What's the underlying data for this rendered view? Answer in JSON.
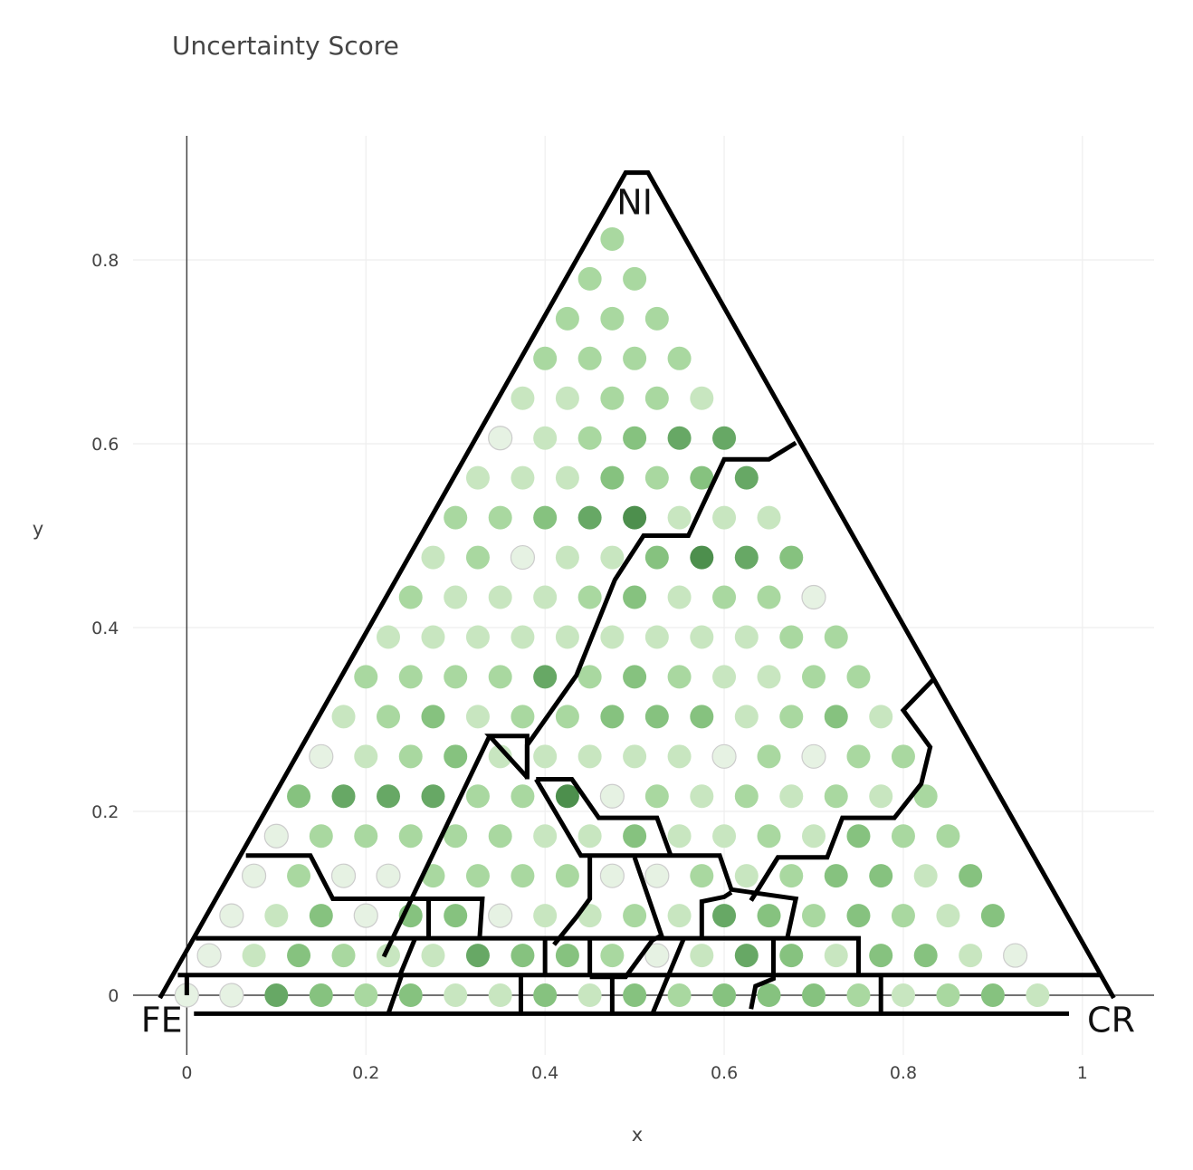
{
  "chart_data": {
    "type": "scatter",
    "title": "Uncertainty Score",
    "xlabel": "x",
    "ylabel": "y",
    "xlim": [
      -0.06,
      1.08
    ],
    "ylim": [
      -0.065,
      0.935
    ],
    "x_ticks": [
      0,
      0.2,
      0.4,
      0.6,
      0.8,
      1
    ],
    "x_tick_labels": [
      "0",
      "0.2",
      "0.4",
      "0.6",
      "0.8",
      "1"
    ],
    "y_ticks": [
      0,
      0.2,
      0.4,
      0.6,
      0.8
    ],
    "y_tick_labels": [
      "0",
      "0.2",
      "0.4",
      "0.6",
      "0.8"
    ],
    "grid": true,
    "vertices": [
      {
        "label": "NI",
        "x": 0.5,
        "y": 0.866
      },
      {
        "label": "FE",
        "x": 0,
        "y": 0
      },
      {
        "label": "CR",
        "x": 1,
        "y": 0
      }
    ],
    "rows": 20,
    "color_scale": [
      "#ffffff",
      "#e6f2e3",
      "#c8e6c0",
      "#a9d8a0",
      "#86c27f",
      "#67a865",
      "#4d8f4d"
    ],
    "scores": [
      "11543422424344432342",
      "1243225443125424421",
      "124144122325434324",
      "13113333113234424",
      "1333332242232433",
      "455533613232323",
      "12342222213133",
      "2342334442342",
      "333353432233",
      "22222222233",
      "3222342331",
      "231224654",
      "33456222",
      "2224345",
      "123455",
      "22332",
      "3333",
      "333",
      "33",
      "3"
    ],
    "boundaries": [
      [
        [
          0.68,
          0.601
        ],
        [
          0.65,
          0.583
        ],
        [
          0.6,
          0.583
        ],
        [
          0.56,
          0.5
        ],
        [
          0.51,
          0.5
        ],
        [
          0.478,
          0.452
        ],
        [
          0.435,
          0.348
        ],
        [
          0.38,
          0.272
        ],
        [
          0.38,
          0.235
        ]
      ],
      [
        [
          0.38,
          0.237
        ],
        [
          0.338,
          0.282
        ],
        [
          0.38,
          0.282
        ],
        [
          0.38,
          0.237
        ]
      ],
      [
        [
          0.338,
          0.282
        ],
        [
          0.22,
          0.042
        ]
      ],
      [
        [
          0.39,
          0.235
        ],
        [
          0.43,
          0.235
        ],
        [
          0.46,
          0.193
        ],
        [
          0.525,
          0.193
        ],
        [
          0.54,
          0.153
        ]
      ],
      [
        [
          0.39,
          0.235
        ],
        [
          0.44,
          0.152
        ],
        [
          0.595,
          0.152
        ],
        [
          0.608,
          0.115
        ],
        [
          0.68,
          0.105
        ],
        [
          0.67,
          0.06
        ]
      ],
      [
        [
          0.45,
          0.15
        ],
        [
          0.45,
          0.105
        ],
        [
          0.435,
          0.085
        ],
        [
          0.41,
          0.055
        ]
      ],
      [
        [
          0.5,
          0.15
        ],
        [
          0.53,
          0.065
        ],
        [
          0.52,
          0.06
        ],
        [
          0.49,
          0.02
        ],
        [
          0.45,
          0.02
        ]
      ],
      [
        [
          0.63,
          0.103
        ],
        [
          0.66,
          0.15
        ],
        [
          0.715,
          0.15
        ],
        [
          0.732,
          0.193
        ],
        [
          0.79,
          0.193
        ],
        [
          0.82,
          0.23
        ],
        [
          0.83,
          0.27
        ],
        [
          0.8,
          0.31
        ],
        [
          0.835,
          0.345
        ]
      ],
      [
        [
          0.66,
          0.15
        ],
        [
          0.63,
          0.103
        ]
      ],
      [
        [
          0.575,
          0.063
        ],
        [
          0.575,
          0.102
        ],
        [
          0.6,
          0.107
        ],
        [
          0.608,
          0.112
        ]
      ],
      [
        [
          0.066,
          0.152
        ],
        [
          0.138,
          0.152
        ],
        [
          0.163,
          0.105
        ],
        [
          0.33,
          0.105
        ],
        [
          0.327,
          0.063
        ]
      ],
      [
        [
          0.27,
          0.105
        ],
        [
          0.27,
          0.062
        ]
      ],
      [
        [
          0.01,
          0.062
        ],
        [
          0.75,
          0.062
        ],
        [
          0.75,
          0.022
        ]
      ],
      [
        [
          0.4,
          0.062
        ],
        [
          0.4,
          0.022
        ]
      ],
      [
        [
          0.45,
          0.062
        ],
        [
          0.45,
          0.022
        ]
      ],
      [
        [
          0.255,
          0.062
        ],
        [
          0.238,
          0.022
        ]
      ],
      [
        [
          0.555,
          0.062
        ],
        [
          0.52,
          -0.02
        ]
      ],
      [
        [
          0.655,
          0.062
        ],
        [
          0.655,
          0.022
        ]
      ],
      [
        [
          -0.01,
          0.022
        ],
        [
          1.02,
          0.022
        ]
      ],
      [
        [
          0.24,
          0.022
        ],
        [
          0.225,
          -0.02
        ]
      ],
      [
        [
          0.373,
          0.022
        ],
        [
          0.373,
          -0.02
        ]
      ],
      [
        [
          0.475,
          0.022
        ],
        [
          0.475,
          -0.02
        ]
      ],
      [
        [
          0.655,
          0.022
        ],
        [
          0.655,
          0.018
        ],
        [
          0.635,
          0.01
        ],
        [
          0.63,
          -0.015
        ]
      ],
      [
        [
          0.775,
          0.022
        ],
        [
          0.775,
          -0.02
        ]
      ],
      [
        [
          0.0,
          0.022
        ],
        [
          0.0,
          0.0
        ]
      ],
      [
        [
          0.008,
          -0.02
        ],
        [
          0.985,
          -0.02
        ]
      ]
    ]
  }
}
